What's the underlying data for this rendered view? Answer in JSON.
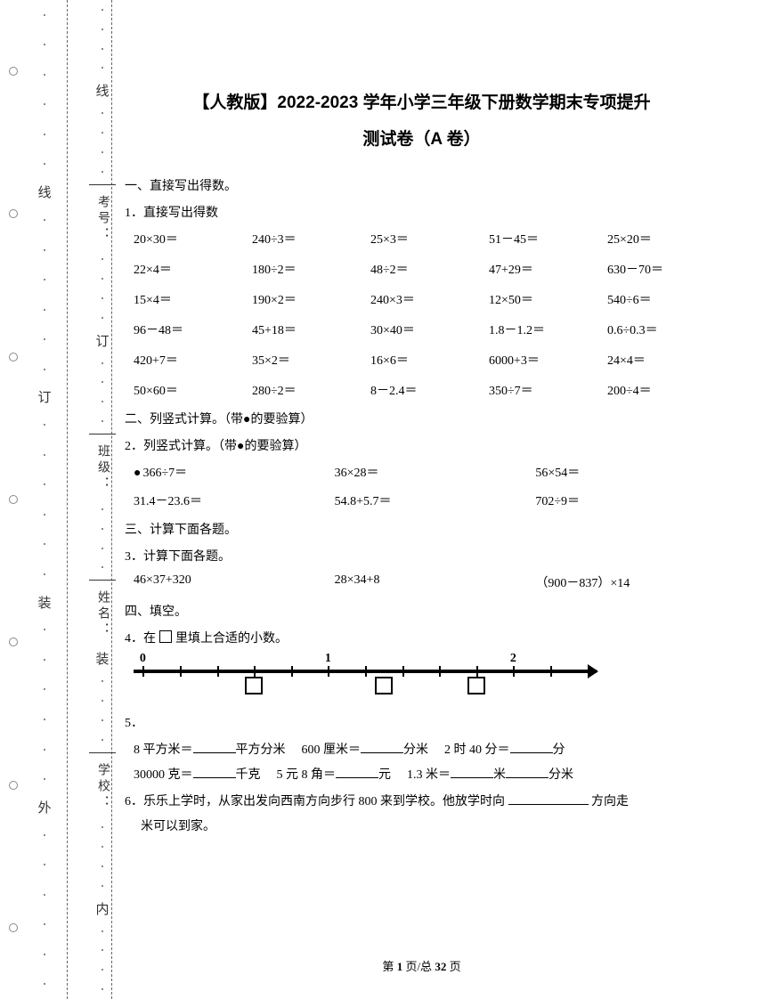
{
  "title_main": "【人教版】2022-2023 学年小学三年级下册数学期末专项提升",
  "title_sub": "测试卷（A 卷）",
  "margin_outer": {
    "chars": [
      "线",
      "订",
      "装",
      "外"
    ]
  },
  "margin_inner": {
    "chars_top": [
      "线"
    ],
    "labels": [
      "考号：",
      "班级：",
      "姓名：",
      "学校："
    ],
    "chars_mid": [
      "订",
      "装",
      "内"
    ]
  },
  "section1": {
    "heading": "一、直接写出得数。",
    "q_heading": "1．直接写出得数",
    "rows": [
      [
        "20×30＝",
        "240÷3＝",
        "25×3＝",
        "51－45＝",
        "25×20＝"
      ],
      [
        "22×4＝",
        "180÷2＝",
        "48÷2＝",
        "47+29＝",
        "630－70＝"
      ],
      [
        "15×4＝",
        "190×2＝",
        "240×3＝",
        "12×50＝",
        "540÷6＝"
      ],
      [
        "96－48＝",
        "45+18＝",
        "30×40＝",
        "1.8－1.2＝",
        "0.6÷0.3＝"
      ],
      [
        "420+7＝",
        "35×2＝",
        "16×6＝",
        "6000+3＝",
        "24×4＝"
      ],
      [
        "50×60＝",
        "280÷2＝",
        "8－2.4＝",
        "350÷7＝",
        "200÷4＝"
      ]
    ]
  },
  "section2": {
    "heading": "二、列竖式计算。（带●的要验算）",
    "q_heading": "2．列竖式计算。（带●的要验算）",
    "rows": [
      [
        "366÷7＝",
        "36×28＝",
        "56×54＝"
      ],
      [
        "31.4－23.6＝",
        "54.8+5.7＝",
        "702÷9＝"
      ]
    ],
    "first_has_dot": true
  },
  "section3": {
    "heading": "三、计算下面各题。",
    "q_heading": "3．计算下面各题。",
    "rows": [
      [
        "46×37+320",
        "28×34+8",
        "（900－837）×14"
      ]
    ]
  },
  "section4": {
    "heading": "四、填空。",
    "q4_prefix": "4．在",
    "q4_suffix": "里填上合适的小数。",
    "numberline": {
      "labels": [
        {
          "text": "0",
          "pos_pct": 2
        },
        {
          "text": "1",
          "pos_pct": 42
        },
        {
          "text": "2",
          "pos_pct": 82
        }
      ],
      "ticks_pct": [
        2,
        10,
        18,
        26,
        34,
        42,
        50,
        58,
        66,
        74,
        82,
        90
      ],
      "boxes_pct": [
        26,
        54,
        74
      ]
    },
    "q5_label": "5．",
    "q5_rows": [
      [
        {
          "pre": "8 平方米＝",
          "unit": "平方分米"
        },
        {
          "pre": "600 厘米＝",
          "unit": "分米"
        },
        {
          "pre": "2 时 40 分＝",
          "unit": "分"
        }
      ],
      [
        {
          "pre": "30000 克＝",
          "unit": "千克"
        },
        {
          "pre": "5 元 8 角＝",
          "unit": "元"
        },
        {
          "pre": "1.3 米＝",
          "unit": "米",
          "unit2": "分米"
        }
      ]
    ],
    "q6_prefix": "6．乐乐上学时，从家出发向西南方向步行 800 来到学校。他放学时向",
    "q6_mid": "方向走",
    "q6_suffix": "米可以到家。"
  },
  "pager": {
    "prefix": "第 ",
    "page": "1",
    "mid": " 页/总 ",
    "total": "32",
    "suffix": " 页"
  }
}
